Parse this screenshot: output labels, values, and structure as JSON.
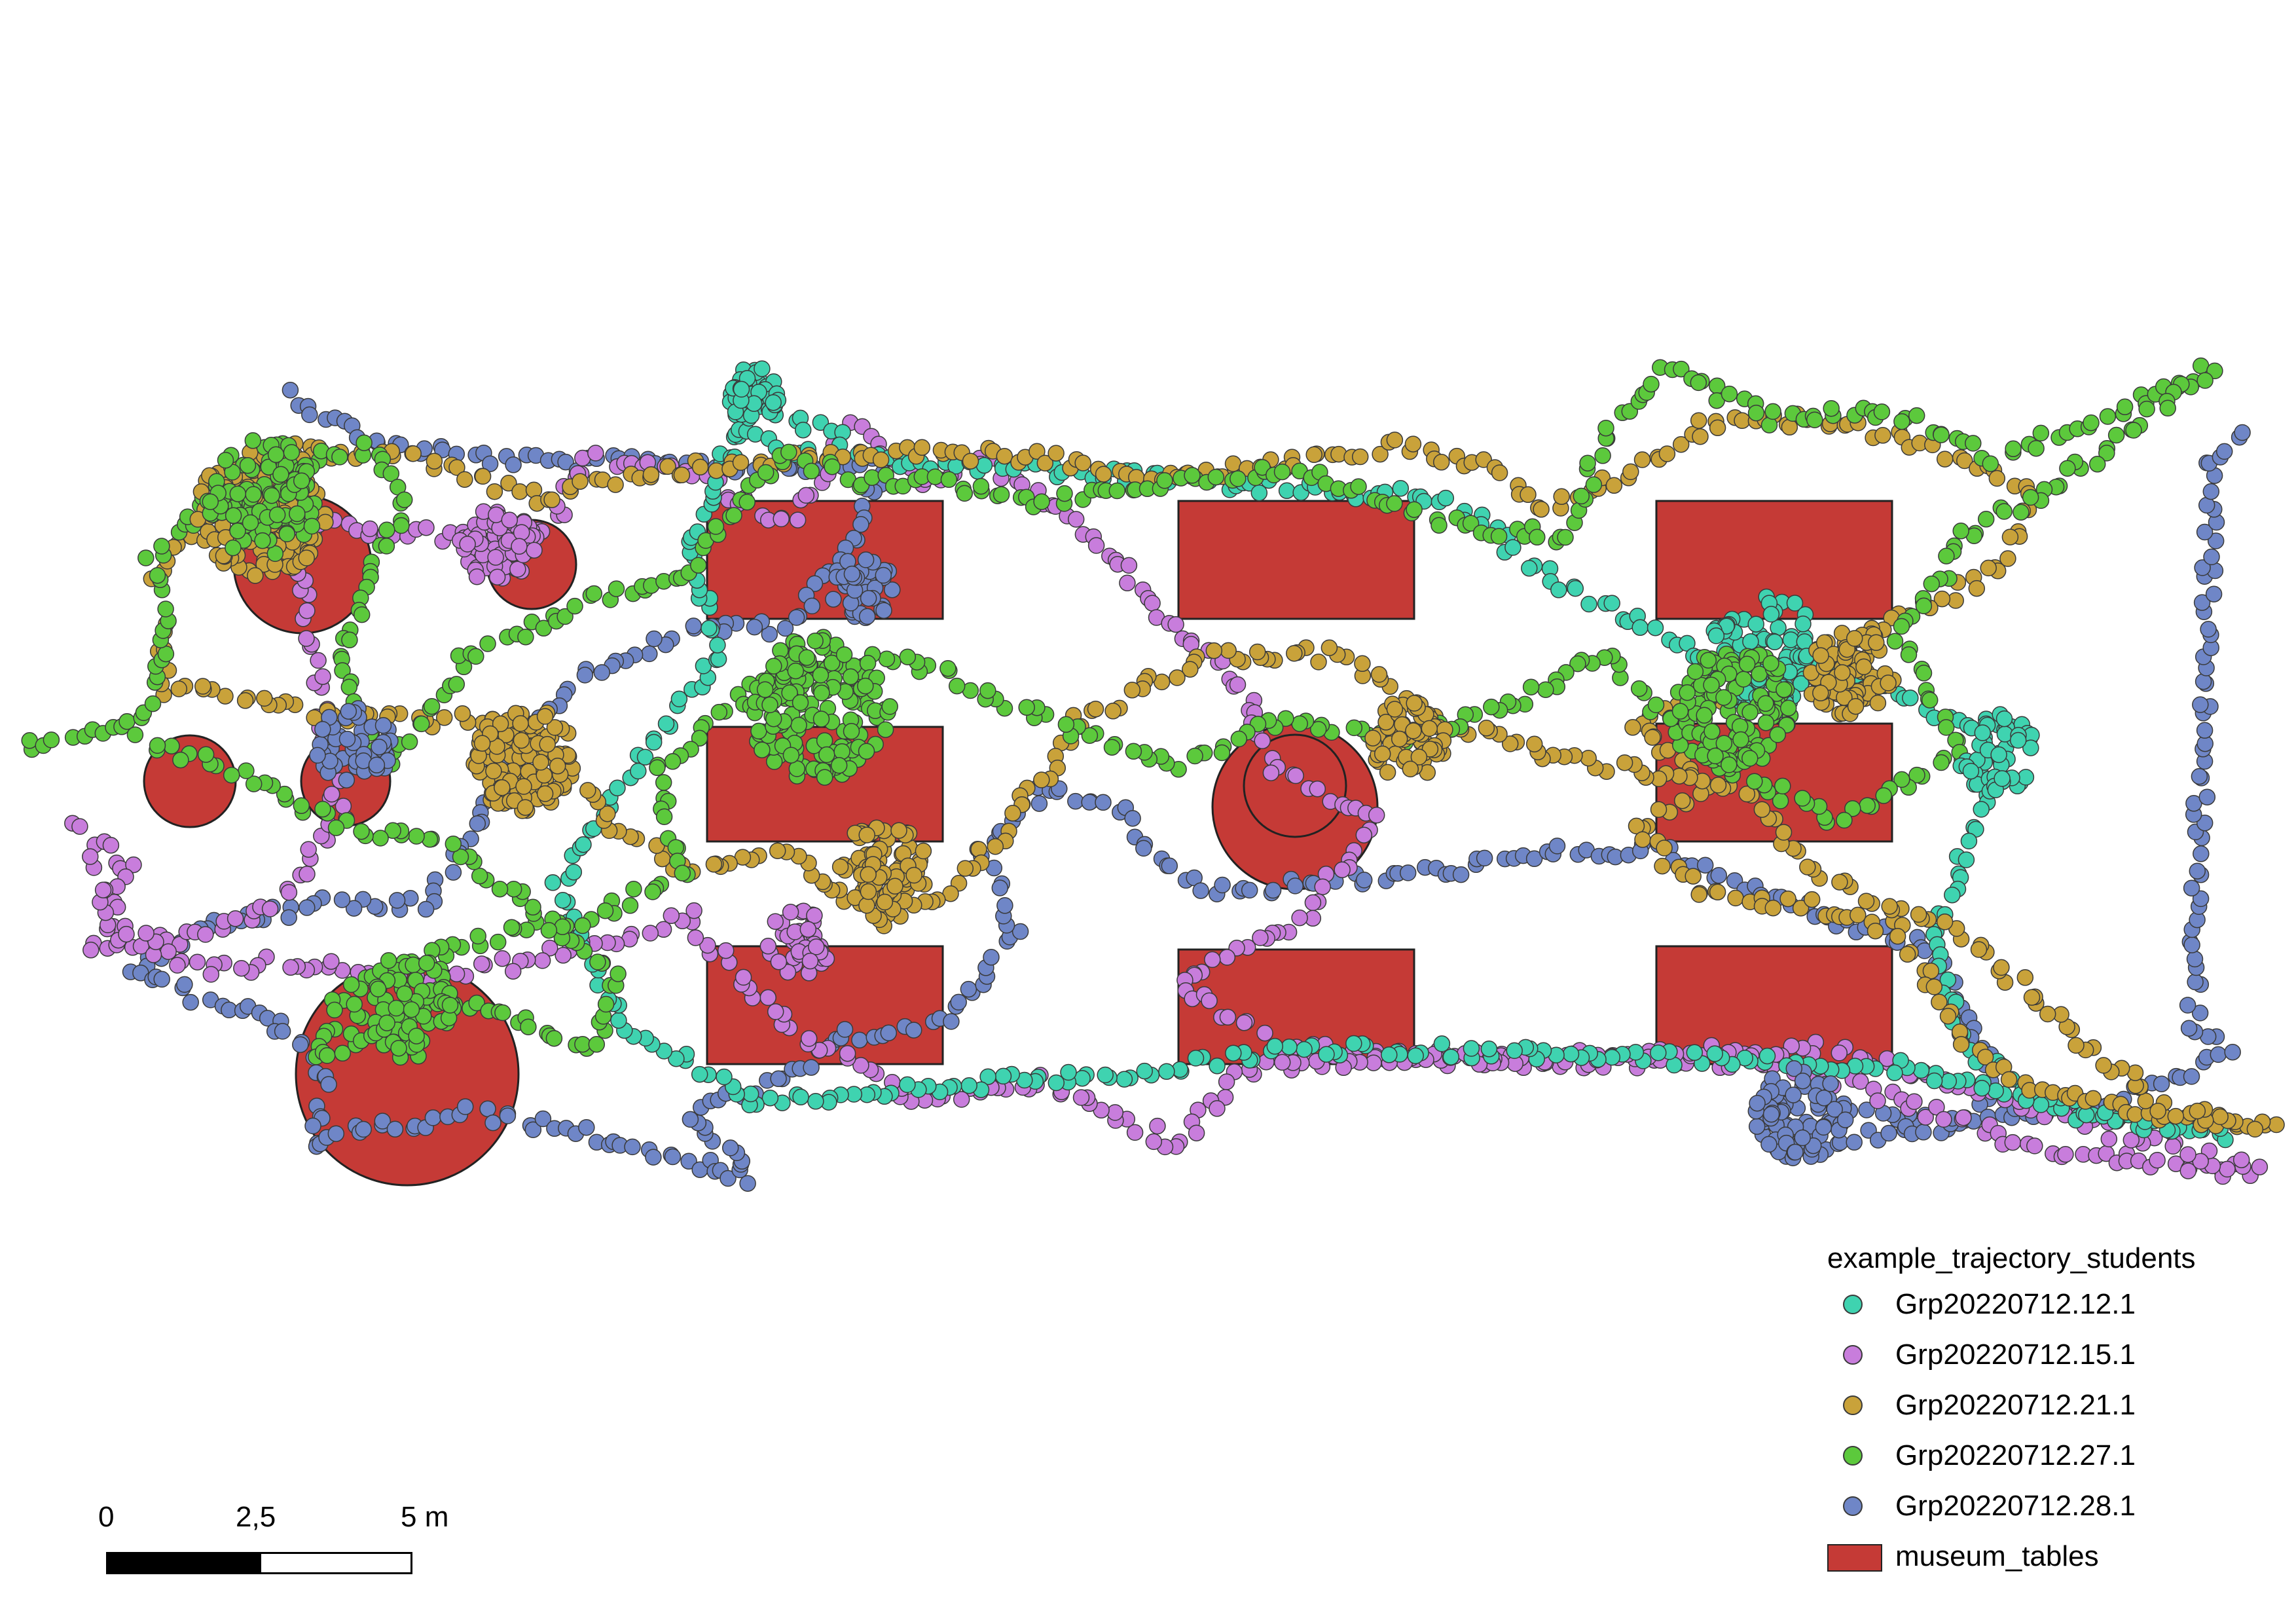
{
  "colors": {
    "table_fill": "#c53a36",
    "table_stroke": "#222222",
    "background": "#ffffff"
  },
  "layers": {
    "trajectories_layer": "example_trajectory_students",
    "tables_layer": "museum_tables"
  },
  "series": [
    {
      "name": "Grp20220712.12.1",
      "color": "#3fd3b0"
    },
    {
      "name": "Grp20220712.15.1",
      "color": "#c87ddc"
    },
    {
      "name": "Grp20220712.21.1",
      "color": "#c9a23a"
    },
    {
      "name": "Grp20220712.27.1",
      "color": "#5cc93c"
    },
    {
      "name": "Grp20220712.28.1",
      "color": "#6f86c7"
    }
  ],
  "scalebar": {
    "labels": [
      "0",
      "2,5",
      "5 m"
    ],
    "unit": "m"
  }
}
